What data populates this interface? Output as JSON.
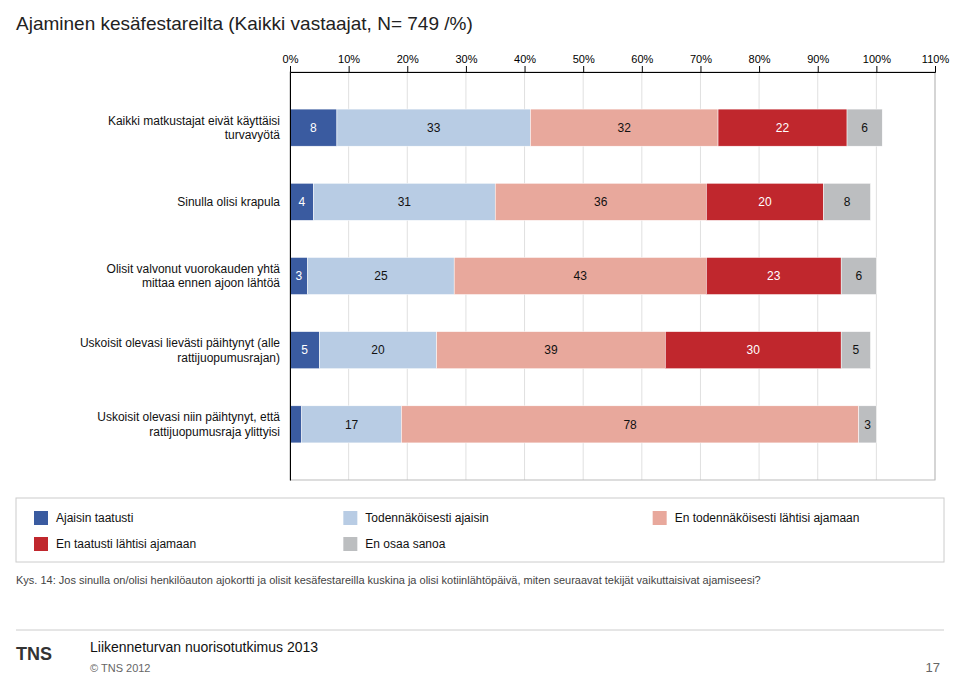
{
  "chart_data": {
    "type": "bar",
    "orientation": "horizontal",
    "stacked": true,
    "title": "Ajaminen kesäfestareilta (Kaikki vastaajat, N= 749 /%)",
    "categories": [
      "Kaikki matkustajat eivät käyttäisi\nturvavyötä",
      "Sinulla olisi krapula",
      "Olisit valvonut vuorokauden yhtä\nmittaa ennen ajoon lähtöä",
      "Uskoisit olevasi lievästi päihtynyt (alle\nrattijuopumusrajan)",
      "Uskoisit olevasi niin päihtynyt, että\nrattijuopumusraja ylittyisi"
    ],
    "series": [
      {
        "name": "Ajaisin taatusti",
        "color": "#3A5BA0",
        "values": [
          8,
          4,
          3,
          5,
          2
        ],
        "value_labels": [
          "8",
          "4",
          "3",
          "5",
          null
        ]
      },
      {
        "name": "Todennäköisesti ajaisin",
        "color": "#B8CCE4",
        "values": [
          33,
          31,
          25,
          20,
          17
        ]
      },
      {
        "name": "En todennäköisesti lähtisi ajamaan",
        "color": "#E8A89C",
        "values": [
          32,
          36,
          43,
          39,
          78
        ]
      },
      {
        "name": "En taatusti lähtisi ajamaan",
        "color": "#C0272D",
        "values": [
          22,
          20,
          23,
          30,
          0
        ],
        "value_labels": [
          "22",
          "20",
          "23",
          "30",
          null
        ]
      },
      {
        "name": "En osaa sanoa",
        "color": "#BCBEC0",
        "values": [
          6,
          8,
          6,
          5,
          3
        ]
      }
    ],
    "xlim": [
      0,
      110
    ],
    "xticks": [
      {
        "value": 0,
        "label": "0%"
      },
      {
        "value": 10,
        "label": "10%"
      },
      {
        "value": 20,
        "label": "20%"
      },
      {
        "value": 30,
        "label": "30%"
      },
      {
        "value": 40,
        "label": "40%"
      },
      {
        "value": 50,
        "label": "50%"
      },
      {
        "value": 60,
        "label": "60%"
      },
      {
        "value": 70,
        "label": "70%"
      },
      {
        "value": 80,
        "label": "80%"
      },
      {
        "value": 90,
        "label": "90%"
      },
      {
        "value": 100,
        "label": "100%"
      },
      {
        "value": 110,
        "label": "110%"
      }
    ],
    "grid": true,
    "legend": "bottom",
    "data_labels": true,
    "annotations": [
      "Kys. 14: Jos sinulla on/olisi henkilöauton ajokortti ja olisit kesäfestareilla kuskina ja olisi kotiinlähtöpäivä, miten seuraavat tekijät vaikuttaisivat ajamiseesi?",
      "TNS",
      "Liikenneturvan nuorisotutkimus 2013",
      "© TNS 2012",
      "17"
    ]
  }
}
